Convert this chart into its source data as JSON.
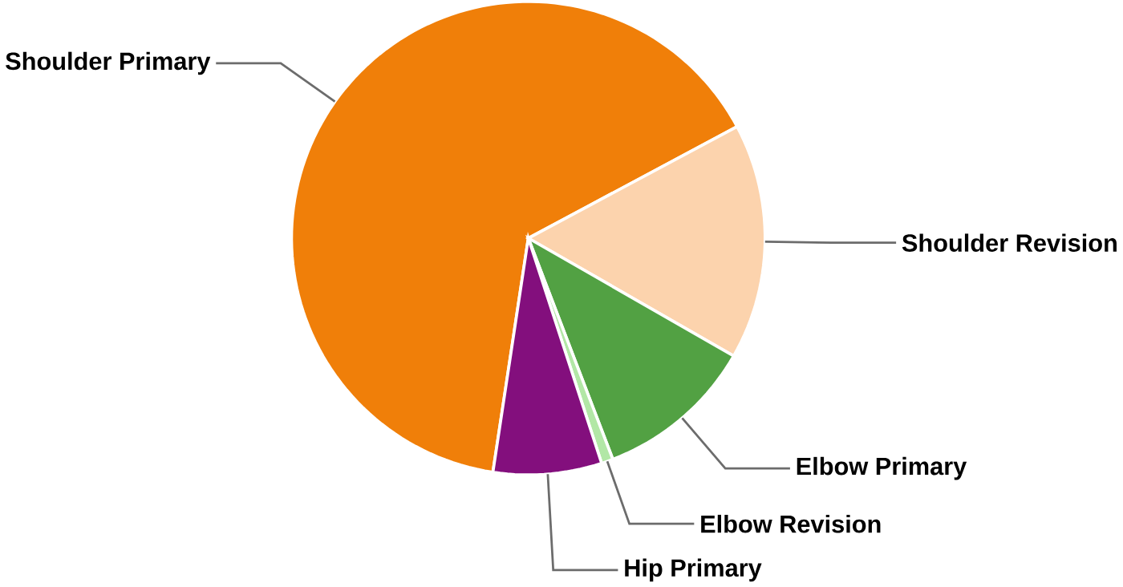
{
  "chart_data": {
    "type": "pie",
    "categories": [
      "Shoulder Primary",
      "Shoulder Revision",
      "Elbow Primary",
      "Elbow Revision",
      "Hip Primary"
    ],
    "values": [
      64.8,
      16.1,
      10.9,
      0.8,
      7.4
    ],
    "colors": [
      "#f07f09",
      "#fcd3ad",
      "#52a143",
      "#b2e7a6",
      "#830f7d"
    ]
  }
}
